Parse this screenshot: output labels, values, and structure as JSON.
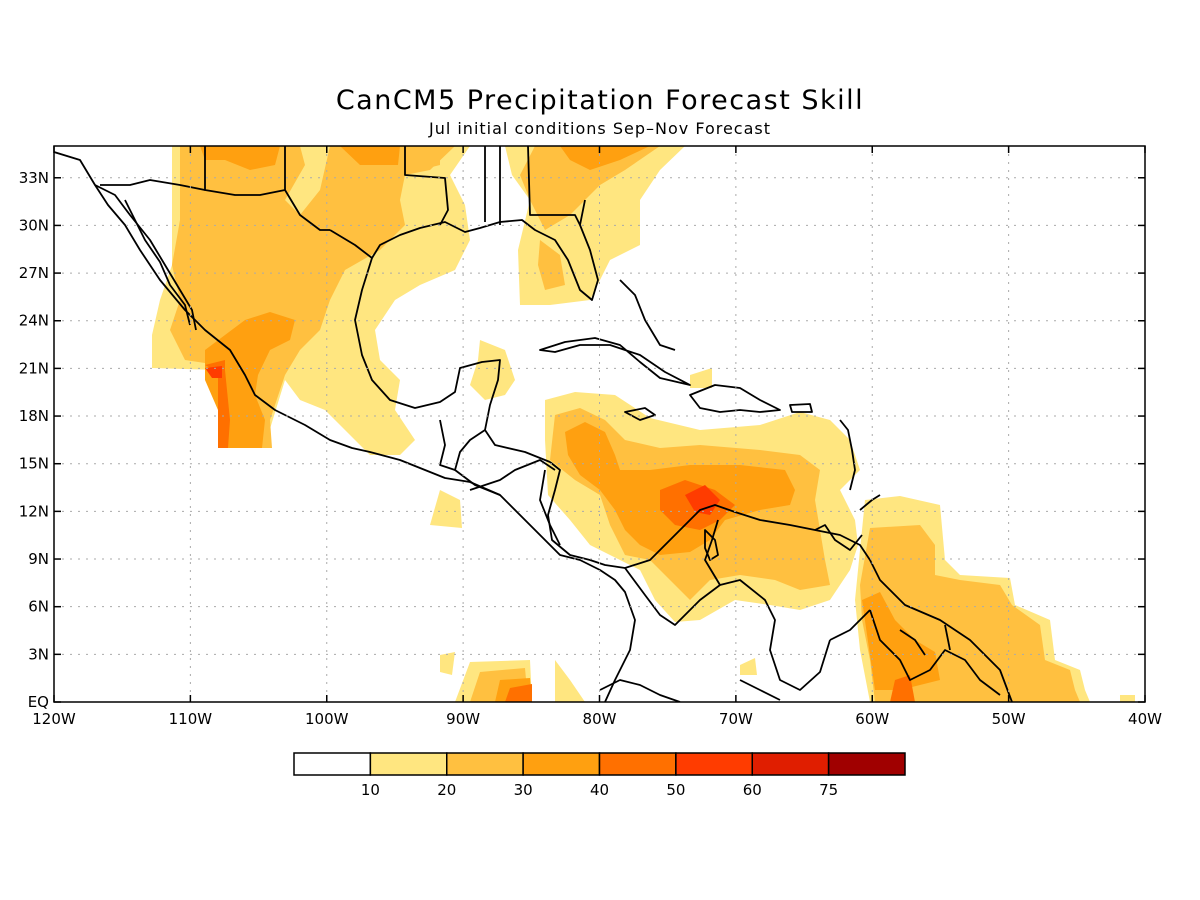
{
  "title": "CanCM5 Precipitation Forecast Skill",
  "subtitle": "Jul initial conditions  Sep–Nov Forecast",
  "map": {
    "lon_range": [
      -120,
      -40
    ],
    "lat_range": [
      0,
      35
    ],
    "grid": "dotted",
    "x_ticks": [
      {
        "value": -120,
        "label": "120W"
      },
      {
        "value": -110,
        "label": "110W"
      },
      {
        "value": -100,
        "label": "100W"
      },
      {
        "value": -90,
        "label": "90W"
      },
      {
        "value": -80,
        "label": "80W"
      },
      {
        "value": -70,
        "label": "70W"
      },
      {
        "value": -60,
        "label": "60W"
      },
      {
        "value": -50,
        "label": "50W"
      },
      {
        "value": -40,
        "label": "40W"
      }
    ],
    "y_ticks": [
      {
        "value": 0,
        "label": "EQ"
      },
      {
        "value": 3,
        "label": "3N"
      },
      {
        "value": 6,
        "label": "6N"
      },
      {
        "value": 9,
        "label": "9N"
      },
      {
        "value": 12,
        "label": "12N"
      },
      {
        "value": 15,
        "label": "15N"
      },
      {
        "value": 18,
        "label": "18N"
      },
      {
        "value": 21,
        "label": "21N"
      },
      {
        "value": 24,
        "label": "24N"
      },
      {
        "value": 27,
        "label": "27N"
      },
      {
        "value": 30,
        "label": "30N"
      },
      {
        "value": 33,
        "label": "33N"
      }
    ]
  },
  "legend": {
    "colors": [
      "#ffffff",
      "#ffe680",
      "#ffc040",
      "#ffa010",
      "#ff7000",
      "#ff3c00",
      "#e01e00",
      "#a00000"
    ],
    "labels": [
      "10",
      "20",
      "30",
      "40",
      "50",
      "60",
      "75"
    ]
  },
  "colors": {
    "c10": "#ffe680",
    "c20": "#ffc040",
    "c30": "#ffa010",
    "c40": "#ff7000",
    "c50": "#ff3c00",
    "coast": "#000000",
    "grid": "#aaaaaa"
  }
}
